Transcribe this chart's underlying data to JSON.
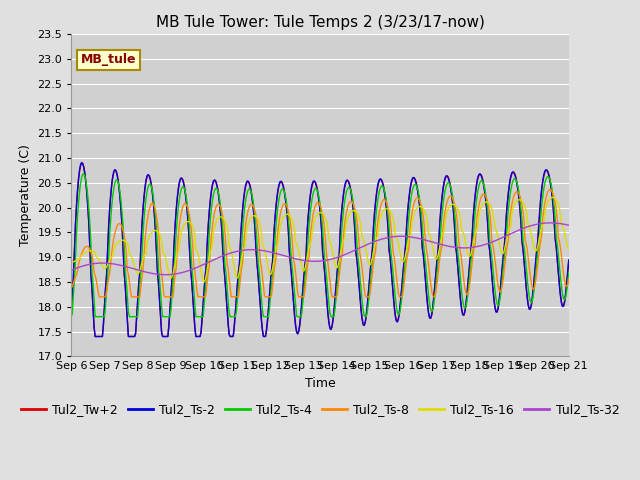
{
  "title": "MB Tule Tower: Tule Temps 2 (3/23/17-now)",
  "xlabel": "Time",
  "ylabel": "Temperature (C)",
  "ylim": [
    17.0,
    23.5
  ],
  "yticks": [
    17.0,
    17.5,
    18.0,
    18.5,
    19.0,
    19.5,
    20.0,
    20.5,
    21.0,
    21.5,
    22.0,
    22.5,
    23.0,
    23.5
  ],
  "xtick_labels": [
    "Sep 6",
    "Sep 7",
    "Sep 8",
    "Sep 9",
    "Sep 10",
    "Sep 11",
    "Sep 12",
    "Sep 13",
    "Sep 14",
    "Sep 15",
    "Sep 16",
    "Sep 17",
    "Sep 18",
    "Sep 19",
    "Sep 20",
    "Sep 21"
  ],
  "series": [
    {
      "label": "Tul2_Tw+2",
      "color": "#dd0000"
    },
    {
      "label": "Tul2_Ts-2",
      "color": "#0000dd"
    },
    {
      "label": "Tul2_Ts-4",
      "color": "#00cc00"
    },
    {
      "label": "Tul2_Ts-8",
      "color": "#ff8800"
    },
    {
      "label": "Tul2_Ts-16",
      "color": "#dddd00"
    },
    {
      "label": "Tul2_Ts-32",
      "color": "#aa44cc"
    }
  ],
  "annotation_label": "MB_tule",
  "annotation_fg": "#880000",
  "annotation_bg": "#ffffcc",
  "annotation_edge": "#aa8800",
  "figure_bg": "#e0e0e0",
  "plot_bg": "#d0d0d0",
  "grid_color": "#ffffff",
  "title_fontsize": 11,
  "axis_label_fontsize": 9,
  "tick_fontsize": 8,
  "legend_fontsize": 9,
  "linewidth": 1.0
}
